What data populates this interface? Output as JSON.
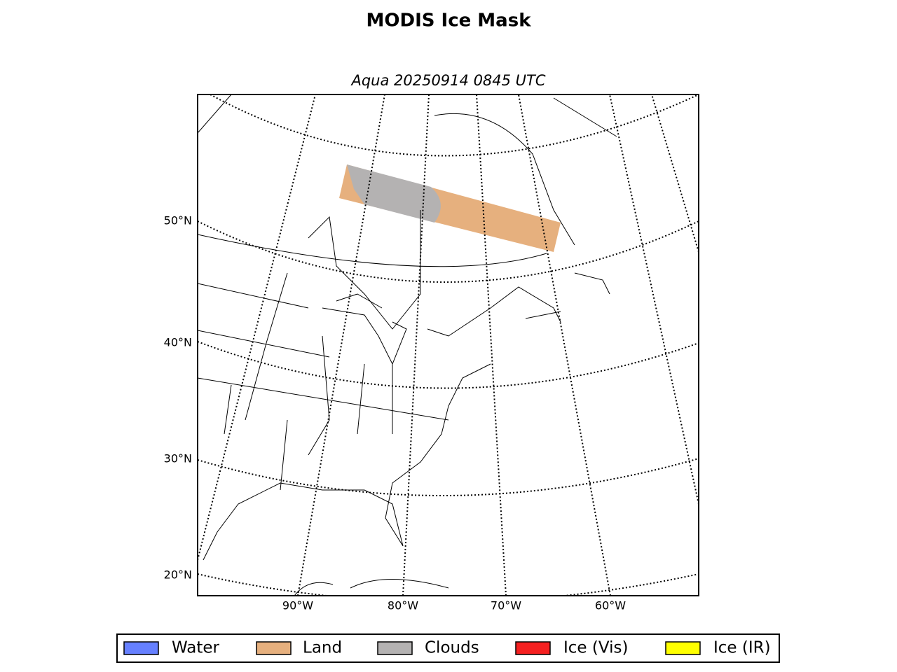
{
  "title": "MODIS Ice Mask",
  "subtitle": "Aqua 20250914 0845 UTC",
  "lat_labels": [
    "50°N",
    "40°N",
    "30°N",
    "20°N"
  ],
  "lon_labels": [
    "90°W",
    "80°W",
    "70°W",
    "60°W"
  ],
  "legend": [
    {
      "label": "Water",
      "color": "#6680ff"
    },
    {
      "label": "Land",
      "color": "#e6b07e"
    },
    {
      "label": "Clouds",
      "color": "#b4b2b2"
    },
    {
      "label": "Ice (Vis)",
      "color": "#f52020"
    },
    {
      "label": "Ice (IR)",
      "color": "#ffff00"
    }
  ]
}
